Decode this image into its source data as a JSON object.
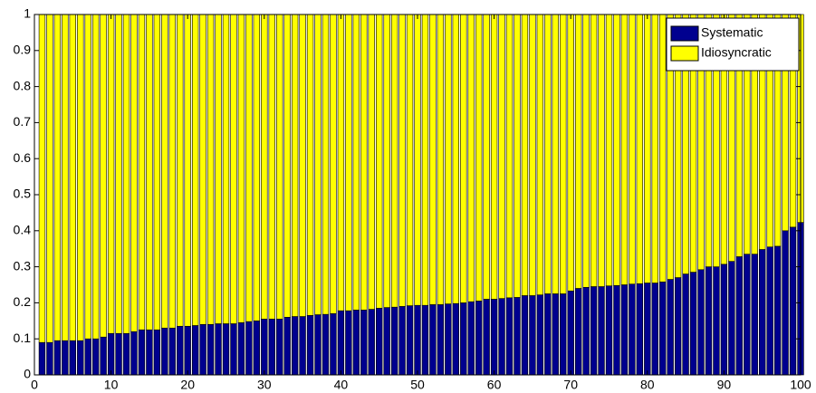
{
  "chart_data": {
    "type": "stacked-bar",
    "x": [
      1,
      2,
      3,
      4,
      5,
      6,
      7,
      8,
      9,
      10,
      11,
      12,
      13,
      14,
      15,
      16,
      17,
      18,
      19,
      20,
      21,
      22,
      23,
      24,
      25,
      26,
      27,
      28,
      29,
      30,
      31,
      32,
      33,
      34,
      35,
      36,
      37,
      38,
      39,
      40,
      41,
      42,
      43,
      44,
      45,
      46,
      47,
      48,
      49,
      50,
      51,
      52,
      53,
      54,
      55,
      56,
      57,
      58,
      59,
      60,
      61,
      62,
      63,
      64,
      65,
      66,
      67,
      68,
      69,
      70,
      71,
      72,
      73,
      74,
      75,
      76,
      77,
      78,
      79,
      80,
      81,
      82,
      83,
      84,
      85,
      86,
      87,
      88,
      89,
      90,
      91,
      92,
      93,
      94,
      95,
      96,
      97,
      98,
      99,
      100
    ],
    "series": [
      {
        "name": "Systematic",
        "color": "#00008f",
        "values": [
          0.09,
          0.09,
          0.095,
          0.095,
          0.095,
          0.095,
          0.1,
          0.1,
          0.105,
          0.115,
          0.115,
          0.115,
          0.12,
          0.125,
          0.125,
          0.125,
          0.13,
          0.13,
          0.135,
          0.135,
          0.137,
          0.14,
          0.14,
          0.142,
          0.142,
          0.142,
          0.145,
          0.148,
          0.15,
          0.155,
          0.155,
          0.155,
          0.16,
          0.162,
          0.162,
          0.165,
          0.167,
          0.168,
          0.17,
          0.178,
          0.178,
          0.18,
          0.18,
          0.182,
          0.185,
          0.187,
          0.188,
          0.19,
          0.192,
          0.193,
          0.193,
          0.195,
          0.195,
          0.197,
          0.198,
          0.2,
          0.203,
          0.205,
          0.21,
          0.21,
          0.212,
          0.214,
          0.215,
          0.22,
          0.22,
          0.222,
          0.225,
          0.225,
          0.225,
          0.233,
          0.24,
          0.243,
          0.245,
          0.245,
          0.247,
          0.248,
          0.25,
          0.252,
          0.253,
          0.255,
          0.255,
          0.258,
          0.265,
          0.27,
          0.28,
          0.285,
          0.292,
          0.3,
          0.3,
          0.307,
          0.315,
          0.328,
          0.335,
          0.335,
          0.348,
          0.355,
          0.357,
          0.4,
          0.41,
          0.423
        ]
      },
      {
        "name": "Idiosyncratic",
        "color": "#ffff00",
        "values": [
          0.91,
          0.91,
          0.905,
          0.905,
          0.905,
          0.905,
          0.9,
          0.9,
          0.895,
          0.885,
          0.885,
          0.885,
          0.88,
          0.875,
          0.875,
          0.875,
          0.87,
          0.87,
          0.865,
          0.865,
          0.863,
          0.86,
          0.86,
          0.858,
          0.858,
          0.858,
          0.855,
          0.852,
          0.85,
          0.845,
          0.845,
          0.845,
          0.84,
          0.838,
          0.838,
          0.835,
          0.833,
          0.832,
          0.83,
          0.822,
          0.822,
          0.82,
          0.82,
          0.818,
          0.815,
          0.813,
          0.812,
          0.81,
          0.808,
          0.807,
          0.807,
          0.805,
          0.805,
          0.803,
          0.802,
          0.8,
          0.797,
          0.795,
          0.79,
          0.79,
          0.788,
          0.786,
          0.785,
          0.78,
          0.78,
          0.778,
          0.775,
          0.775,
          0.775,
          0.767,
          0.76,
          0.757,
          0.755,
          0.755,
          0.753,
          0.752,
          0.75,
          0.748,
          0.747,
          0.745,
          0.745,
          0.742,
          0.735,
          0.73,
          0.72,
          0.715,
          0.708,
          0.7,
          0.7,
          0.693,
          0.685,
          0.672,
          0.665,
          0.665,
          0.652,
          0.645,
          0.643,
          0.6,
          0.59,
          0.577
        ]
      }
    ],
    "xlim": [
      0,
      100
    ],
    "xticks": [
      0,
      10,
      20,
      30,
      40,
      50,
      60,
      70,
      80,
      90,
      100
    ],
    "ylim": [
      0,
      1
    ],
    "yticks": [
      0,
      0.1,
      0.2,
      0.3,
      0.4,
      0.5,
      0.6,
      0.7,
      0.8,
      0.9,
      1
    ],
    "legend": "top-right"
  }
}
